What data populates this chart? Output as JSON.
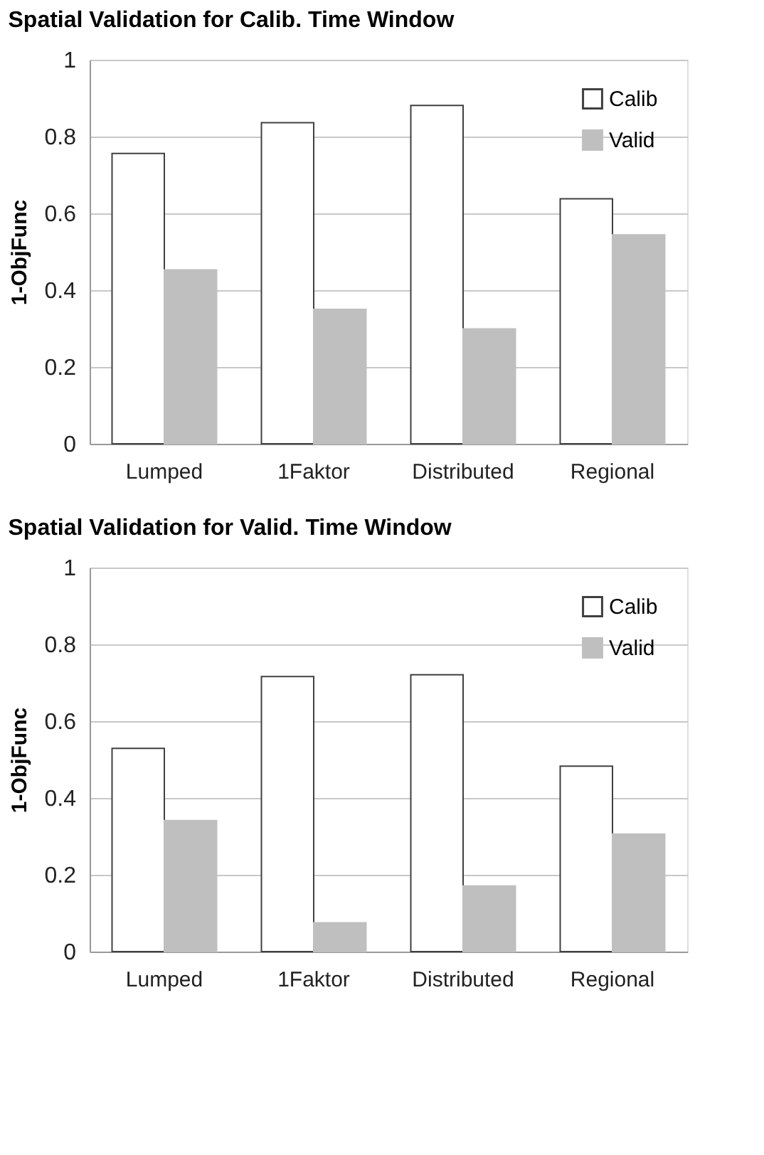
{
  "chart_data": [
    {
      "type": "bar",
      "title": "Spatial Validation for Calib. Time Window",
      "ylabel": "1-ObjFunc",
      "categories": [
        "Lumped",
        "1Faktor",
        "Distributed",
        "Regional"
      ],
      "series": [
        {
          "name": "Calib",
          "color": "#ffffff",
          "values": [
            0.756,
            0.836,
            0.881,
            0.638
          ]
        },
        {
          "name": "Valid",
          "color": "#bfbfbf",
          "values": [
            0.453,
            0.35,
            0.299,
            0.544
          ]
        }
      ],
      "ylim": [
        0,
        1
      ],
      "yticks": [
        0,
        0.2,
        0.4,
        0.6,
        0.8,
        1
      ],
      "grid": "y",
      "legend": "top right"
    },
    {
      "type": "bar",
      "title": "Spatial Validation for Valid. Time Window",
      "ylabel": "1-ObjFunc",
      "categories": [
        "Lumped",
        "1Faktor",
        "Distributed",
        "Regional"
      ],
      "series": [
        {
          "name": "Calib",
          "color": "#ffffff",
          "values": [
            0.529,
            0.716,
            0.721,
            0.483
          ]
        },
        {
          "name": "Valid",
          "color": "#bfbfbf",
          "values": [
            0.341,
            0.075,
            0.171,
            0.306
          ]
        }
      ],
      "ylim": [
        0,
        1
      ],
      "yticks": [
        0,
        0.2,
        0.4,
        0.6,
        0.8,
        1
      ],
      "grid": "y",
      "legend": "top right"
    }
  ]
}
